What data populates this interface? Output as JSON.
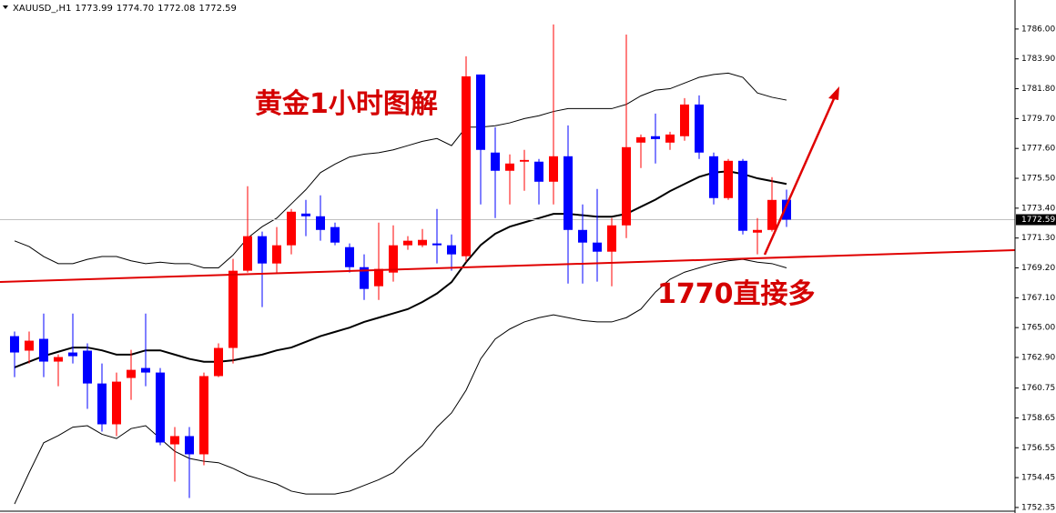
{
  "chart_data": {
    "type": "candlestick",
    "symbol": "XAUUSD_,H1",
    "ohlc_labels": [
      "1773.99",
      "1774.70",
      "1772.08",
      "1772.59"
    ],
    "annotations": [
      "黄金1小时图解",
      "1770直接多"
    ],
    "up_color": "#ff0000",
    "down_color": "#0000ff",
    "open": [
      1764.4,
      1763.38,
      1764.21,
      1762.61,
      1763.25,
      1763.38,
      1761.07,
      1758.2,
      1761.46,
      1762.16,
      1761.84,
      1756.79,
      1757.37,
      1756.09,
      1761.59,
      1763.57,
      1769.0,
      1771.43,
      1769.51,
      1770.79,
      1773.02,
      1772.83,
      1772.07,
      1770.66,
      1769.25,
      1767.91,
      1768.87,
      1770.79,
      1770.79,
      1770.92,
      1770.79,
      1770.02,
      1782.8,
      1777.31,
      1776.03,
      1776.67,
      1776.67,
      1775.26,
      1777.05,
      1771.87,
      1770.98,
      1770.34,
      1772.19,
      1778.01,
      1778.46,
      1778.01,
      1778.46,
      1780.69,
      1777.05,
      1774.11,
      1776.73,
      1771.68,
      1771.87,
      1773.99
    ],
    "high": [
      1764.72,
      1764.72,
      1765.99,
      1763.12,
      1765.99,
      1763.89,
      1762.48,
      1761.84,
      1763.44,
      1765.99,
      1762.16,
      1758.01,
      1758.01,
      1761.84,
      1763.89,
      1769.83,
      1774.94,
      1771.75,
      1772.07,
      1773.34,
      1773.98,
      1774.3,
      1772.38,
      1770.92,
      1770.15,
      1772.38,
      1772.19,
      1771.43,
      1771.94,
      1773.34,
      1771.55,
      1784.08,
      1782.8,
      1779.09,
      1777.18,
      1777.5,
      1776.86,
      1786.32,
      1779.22,
      1773.66,
      1774.75,
      1772.7,
      1785.61,
      1778.58,
      1780.05,
      1778.77,
      1781.14,
      1781.33,
      1777.31,
      1776.86,
      1776.86,
      1772.7,
      1775.58,
      1774.7
    ],
    "low": [
      1761.52,
      1762.48,
      1761.52,
      1760.88,
      1762.48,
      1759.29,
      1757.69,
      1757.37,
      1759.92,
      1760.88,
      1756.73,
      1754.17,
      1753.02,
      1755.32,
      1761.52,
      1762.48,
      1768.87,
      1766.44,
      1768.87,
      1770.15,
      1771.43,
      1771.11,
      1770.79,
      1768.87,
      1766.95,
      1766.95,
      1768.23,
      1770.47,
      1770.66,
      1769.51,
      1769.0,
      1769.64,
      1773.66,
      1772.7,
      1773.66,
      1774.62,
      1773.66,
      1773.66,
      1768.1,
      1768.1,
      1768.23,
      1767.91,
      1771.3,
      1776.22,
      1776.54,
      1777.5,
      1778.14,
      1776.86,
      1773.66,
      1773.98,
      1771.55,
      1770.15,
      1771.75,
      1772.08
    ],
    "close": [
      1763.25,
      1764.08,
      1762.61,
      1762.93,
      1762.99,
      1761.07,
      1758.2,
      1761.2,
      1762.03,
      1761.84,
      1756.92,
      1757.37,
      1756.09,
      1761.59,
      1763.57,
      1769.0,
      1771.43,
      1769.51,
      1770.79,
      1773.15,
      1772.83,
      1771.87,
      1770.98,
      1769.25,
      1767.72,
      1769.13,
      1770.79,
      1771.11,
      1771.17,
      1770.79,
      1770.15,
      1782.67,
      1777.5,
      1776.03,
      1776.54,
      1776.79,
      1775.26,
      1777.05,
      1771.87,
      1770.98,
      1770.34,
      1772.19,
      1777.69,
      1778.39,
      1778.26,
      1778.58,
      1780.69,
      1777.31,
      1774.11,
      1776.73,
      1771.81,
      1771.87,
      1773.98,
      1772.59
    ],
    "lines": [
      {
        "color": "#000000",
        "values": [
          1771.1,
          1770.7,
          1770.0,
          1769.5,
          1769.5,
          1769.8,
          1770.0,
          1770.0,
          1769.7,
          1769.5,
          1769.6,
          1769.5,
          1769.5,
          1769.2,
          1769.2,
          1770.1,
          1771.3,
          1772.1,
          1772.7,
          1773.7,
          1774.7,
          1775.9,
          1776.5,
          1777.0,
          1777.2,
          1777.3,
          1777.5,
          1777.8,
          1778.1,
          1778.3,
          1777.8,
          1779.1,
          1779.1,
          1779.2,
          1779.4,
          1779.7,
          1779.9,
          1780.2,
          1780.4,
          1780.4,
          1780.4,
          1780.4,
          1780.7,
          1781.3,
          1781.7,
          1781.8,
          1782.2,
          1782.6,
          1782.8,
          1782.9,
          1782.6,
          1781.5,
          1781.2,
          1781.0
        ]
      },
      {
        "color": "#000000",
        "values": [
          1762.2,
          1762.6,
          1763.0,
          1763.3,
          1763.6,
          1763.6,
          1763.4,
          1763.1,
          1763.1,
          1763.4,
          1763.4,
          1763.1,
          1762.8,
          1762.6,
          1762.6,
          1762.7,
          1762.9,
          1763.1,
          1763.4,
          1763.6,
          1764.0,
          1764.4,
          1764.7,
          1765.0,
          1765.4,
          1765.7,
          1766.0,
          1766.3,
          1766.8,
          1767.4,
          1768.2,
          1769.6,
          1770.8,
          1771.6,
          1772.1,
          1772.4,
          1772.7,
          1773.0,
          1773.0,
          1772.9,
          1772.8,
          1772.8,
          1773.0,
          1773.5,
          1774.0,
          1774.6,
          1775.1,
          1775.6,
          1775.9,
          1776.0,
          1775.8,
          1775.5,
          1775.3,
          1775.1
        ]
      },
      {
        "color": "#000000",
        "values": [
          1752.6,
          1754.8,
          1756.9,
          1757.4,
          1758.0,
          1758.1,
          1757.5,
          1757.2,
          1757.9,
          1758.1,
          1757.2,
          1756.3,
          1755.8,
          1755.6,
          1755.5,
          1755.1,
          1754.6,
          1754.3,
          1754.0,
          1753.5,
          1753.3,
          1753.3,
          1753.3,
          1753.5,
          1753.9,
          1754.3,
          1754.8,
          1755.8,
          1756.7,
          1758.0,
          1759.0,
          1760.6,
          1762.8,
          1764.2,
          1764.9,
          1765.4,
          1765.7,
          1765.9,
          1765.7,
          1765.5,
          1765.4,
          1765.4,
          1765.7,
          1766.3,
          1767.5,
          1768.4,
          1768.9,
          1769.2,
          1769.5,
          1769.7,
          1769.8,
          1769.6,
          1769.5,
          1769.2
        ]
      }
    ],
    "ylim": [
      1752.09,
      1788.04
    ],
    "yticks": [
      {
        "value": 1786,
        "label": "1786.00"
      },
      {
        "value": 1783.9,
        "label": "1783.90"
      },
      {
        "value": 1781.8,
        "label": "1781.80"
      },
      {
        "value": 1779.7,
        "label": "1779.70"
      },
      {
        "value": 1777.6,
        "label": "1777.60"
      },
      {
        "value": 1775.5,
        "label": "1775.50"
      },
      {
        "value": 1773.4,
        "label": "1773.40"
      },
      {
        "value": 1771.3,
        "label": "1771.30"
      },
      {
        "value": 1769.2,
        "label": "1769.20"
      },
      {
        "value": 1767.1,
        "label": "1767.10"
      },
      {
        "value": 1765,
        "label": "1765.00"
      },
      {
        "value": 1762.9,
        "label": "1762.90"
      },
      {
        "value": 1760.75,
        "label": "1760.75"
      },
      {
        "value": 1758.65,
        "label": "1758.65"
      },
      {
        "value": 1756.55,
        "label": "1756.55"
      },
      {
        "value": 1754.45,
        "label": "1754.45"
      },
      {
        "value": 1752.35,
        "label": "1752.35"
      }
    ]
  }
}
